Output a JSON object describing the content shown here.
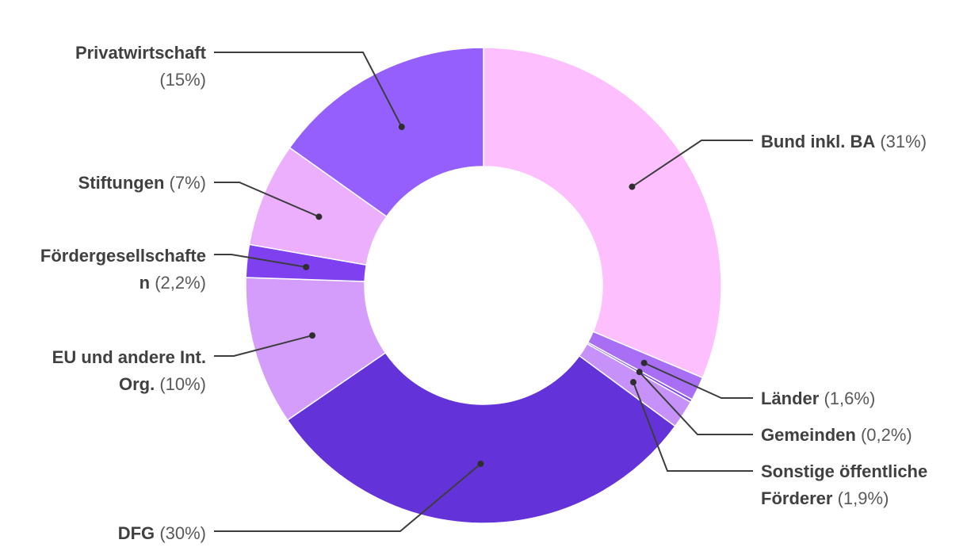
{
  "chart_data": {
    "type": "pie",
    "donut": true,
    "categories": [
      "Bund inkl. BA",
      "Länder",
      "Gemeinden",
      "Sonstige öffentliche Förderer",
      "DFG",
      "EU und andere Int. Org.",
      "Fördergesellschaften",
      "Stiftungen",
      "Privatwirtschaft"
    ],
    "values": [
      31,
      1.6,
      0.2,
      1.9,
      30,
      10,
      2.2,
      7,
      15
    ],
    "colors": [
      "#fdbffe",
      "#a86ff5",
      "#7e44ec",
      "#c692fa",
      "#6332d9",
      "#d49cfb",
      "#7f40f0",
      "#ebaffd",
      "#955ffe"
    ]
  },
  "labels": [
    {
      "name": "Bund inkl. BA",
      "pct": "(31%)"
    },
    {
      "name": "Länder",
      "pct": "(1,6%)"
    },
    {
      "name": "Gemeinden",
      "pct": "(0,2%)"
    },
    {
      "name1": "Sonstige öffentliche",
      "name2": "Förderer",
      "pct": "(1,9%)"
    },
    {
      "name": "DFG",
      "pct": "(30%)"
    },
    {
      "name1": "EU und andere Int.",
      "name2": "Org.",
      "pct": "(10%)"
    },
    {
      "name1": "Fördergesellschafte",
      "name2": "n",
      "pct": "(2,2%)"
    },
    {
      "name": "Stiftungen",
      "pct": "(7%)"
    },
    {
      "name": "Privatwirtschaft",
      "pct": "(15%)"
    }
  ]
}
